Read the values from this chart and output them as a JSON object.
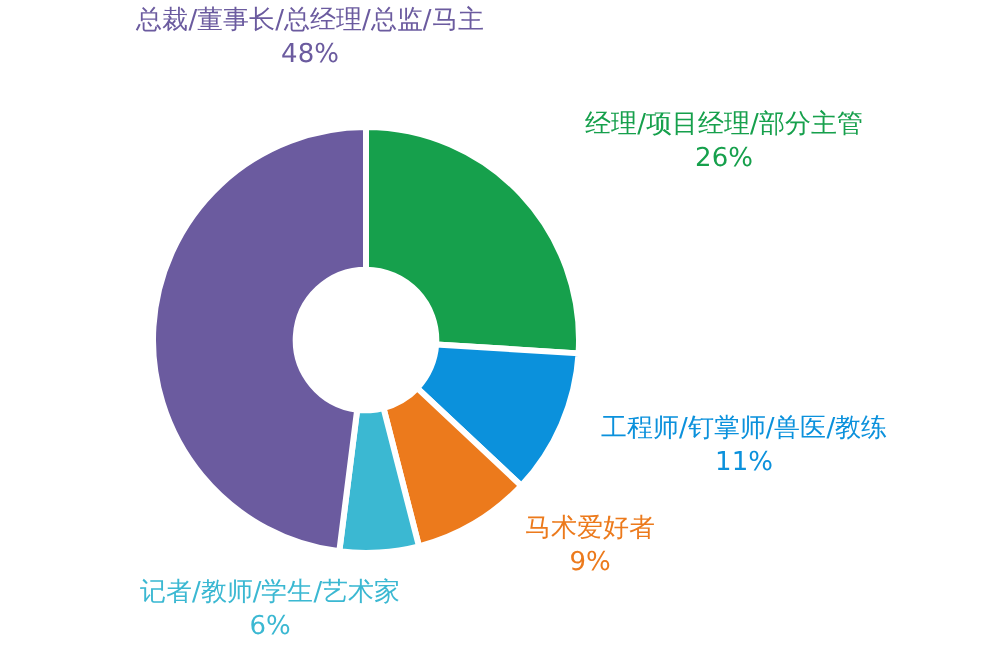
{
  "chart_data": {
    "type": "donut",
    "categories": [
      "经理/项目经理/部分主管",
      "工程师/钉掌师/兽医/教练",
      "马术爱好者",
      "记者/教师/学生/艺术家",
      "总裁/董事长/总经理/总监/马主"
    ],
    "values": [
      26,
      11,
      9,
      6,
      48
    ],
    "colors": [
      "#16a04c",
      "#0b91dc",
      "#ec7a1c",
      "#3bb8d2",
      "#6b5b9f"
    ],
    "value_labels": [
      "26%",
      "11%",
      "9%",
      "6%",
      "48%"
    ]
  }
}
